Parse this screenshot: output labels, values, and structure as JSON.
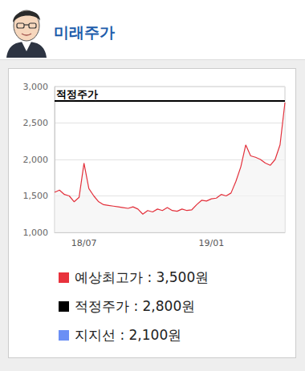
{
  "header": {
    "title": "미래주가"
  },
  "chart_data": {
    "type": "line",
    "color": "#e3303b",
    "categories": [
      null,
      null,
      null,
      null,
      null,
      null,
      "18/07",
      null,
      null,
      null,
      null,
      null,
      null,
      null,
      null,
      null,
      null,
      null,
      null,
      null,
      null,
      null,
      null,
      null,
      null,
      null,
      null,
      null,
      null,
      null,
      null,
      null,
      "19/01",
      null,
      null,
      null,
      null,
      null,
      null,
      null,
      null,
      null,
      null,
      null,
      null,
      null,
      null,
      null
    ],
    "values": [
      1550,
      1580,
      1520,
      1500,
      1420,
      1480,
      1950,
      1600,
      1500,
      1420,
      1380,
      1370,
      1360,
      1350,
      1340,
      1330,
      1350,
      1320,
      1250,
      1300,
      1280,
      1320,
      1300,
      1340,
      1300,
      1290,
      1320,
      1300,
      1310,
      1380,
      1440,
      1430,
      1460,
      1470,
      1520,
      1500,
      1540,
      1700,
      1900,
      2200,
      2050,
      2030,
      2000,
      1950,
      1920,
      2000,
      2200,
      2780
    ],
    "ylim": [
      1000,
      3000
    ],
    "yticks": [
      {
        "value": 1000,
        "label": "1,000"
      },
      {
        "value": 1500,
        "label": "1,500"
      },
      {
        "value": 2000,
        "label": "2,000"
      },
      {
        "value": 2500,
        "label": "2,500"
      },
      {
        "value": 3000,
        "label": "3,000"
      }
    ],
    "grid": true,
    "annotations": [
      {
        "label": "적정주가",
        "value": 2800,
        "color": "#000000"
      }
    ],
    "legend_items": [
      {
        "label": "예상최고가 : 3,500원",
        "color": "#e8323c"
      },
      {
        "label": "적정주가 : 2,800원",
        "color": "#000000"
      },
      {
        "label": "지지선 : 2,100원",
        "color": "#6b8ff5"
      }
    ]
  }
}
